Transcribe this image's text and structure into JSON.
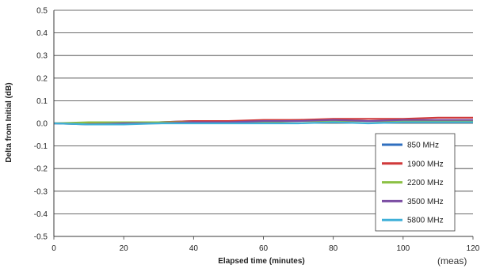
{
  "chart_data": {
    "type": "line",
    "title": "",
    "xlabel": "Elapsed time (minutes)",
    "ylabel": "Delta from Initial (dB)",
    "xlim": [
      0,
      120
    ],
    "ylim": [
      -0.5,
      0.5
    ],
    "x_ticks": [
      "0",
      "20",
      "40",
      "60",
      "80",
      "100",
      "120"
    ],
    "y_ticks": [
      "0.5",
      "0.4",
      "0.3",
      "0.2",
      "0.1",
      "0.0",
      "-0.1",
      "-0.2",
      "-0.3",
      "-0.4",
      "-0.5"
    ],
    "grid": true,
    "legend_position": "bottom-right",
    "series": [
      {
        "name": "850 MHz",
        "color": "#2f6fbf",
        "x": [
          0,
          10,
          20,
          30,
          40,
          50,
          60,
          70,
          80,
          90,
          100,
          110,
          120
        ],
        "y": [
          0.0,
          0.0,
          0.005,
          0.005,
          0.01,
          0.01,
          0.01,
          0.015,
          0.015,
          0.01,
          0.01,
          0.01,
          0.01
        ]
      },
      {
        "name": "1900 MHz",
        "color": "#d0393a",
        "x": [
          0,
          10,
          20,
          30,
          40,
          50,
          60,
          70,
          80,
          90,
          100,
          110,
          120
        ],
        "y": [
          0.0,
          0.0,
          0.005,
          0.005,
          0.01,
          0.01,
          0.015,
          0.015,
          0.02,
          0.02,
          0.02,
          0.025,
          0.025
        ]
      },
      {
        "name": "2200 MHz",
        "color": "#8cc044",
        "x": [
          0,
          10,
          20,
          30,
          40,
          50,
          60,
          70,
          80,
          90,
          100,
          110,
          120
        ],
        "y": [
          0.0,
          0.005,
          0.005,
          0.005,
          0.005,
          0.005,
          0.005,
          0.01,
          0.01,
          0.01,
          0.01,
          0.01,
          0.01
        ]
      },
      {
        "name": "3500 MHz",
        "color": "#7b4ea3",
        "x": [
          0,
          10,
          20,
          30,
          40,
          50,
          60,
          70,
          80,
          90,
          100,
          110,
          120
        ],
        "y": [
          0.0,
          -0.005,
          0.0,
          0.0,
          0.005,
          0.005,
          0.01,
          0.01,
          0.015,
          0.01,
          0.015,
          0.015,
          0.015
        ]
      },
      {
        "name": "5800 MHz",
        "color": "#3fb0d8",
        "x": [
          0,
          10,
          20,
          30,
          40,
          50,
          60,
          70,
          80,
          90,
          100,
          110,
          120
        ],
        "y": [
          0.0,
          -0.005,
          -0.005,
          0.0,
          0.0,
          0.0,
          0.0,
          0.0,
          0.005,
          0.0,
          0.005,
          0.005,
          0.005
        ]
      }
    ]
  },
  "note": "(meas)"
}
